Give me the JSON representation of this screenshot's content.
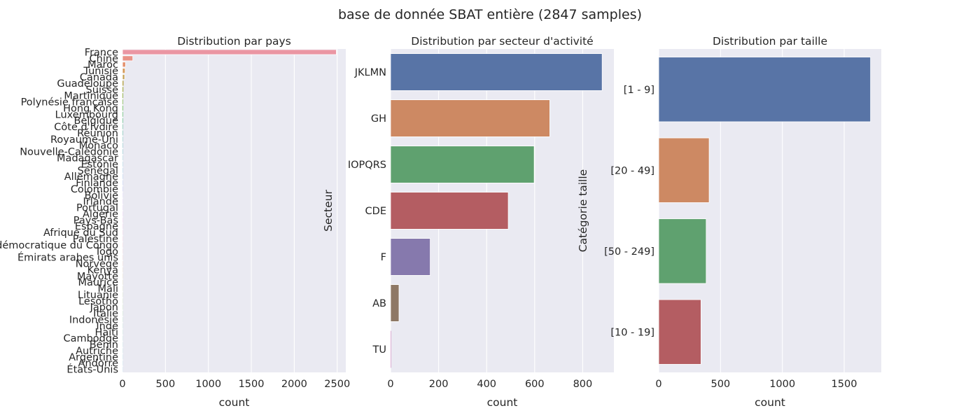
{
  "suptitle": "base de donnée SBAT entière (2847 samples)",
  "chart_data": [
    {
      "type": "bar",
      "orientation": "horizontal",
      "title": "Distribution par pays",
      "xlabel": "count",
      "ylabel": "",
      "xlim": [
        0,
        2600
      ],
      "xticks": [
        0,
        500,
        1000,
        1500,
        2000,
        2500
      ],
      "categories": [
        "France",
        "Chine",
        "Maroc",
        "Tunisie",
        "Canada",
        "Guadeloupe",
        "Suisse",
        "Martinique",
        "Polynésie française",
        "Hong Kong",
        "Luxembourg",
        "Belgique",
        "Côte d'Ivoire",
        "Réunion",
        "Royaume-Uni",
        "Monaco",
        "Nouvelle-Calédonie",
        "Madagascar",
        "Estonie",
        "Sénégal",
        "Allemagne",
        "Finlande",
        "Colombie",
        "Bolivie",
        "Irlande",
        "Portugal",
        "Algérie",
        "Pays-Bas",
        "Espagne",
        "Afrique du Sud",
        "Palestine",
        "République démocratique du Congo",
        "Togo",
        "Émirats arabes unis",
        "Norvège",
        "Kenya",
        "Mayotte",
        "Maurice",
        "Mali",
        "Lituanie",
        "Lesotho",
        "Japon",
        "Italie",
        "Indonésie",
        "Inde",
        "Haïti",
        "Cambodge",
        "Bénin",
        "Autriche",
        "Argentine",
        "Andorre",
        "États-Unis"
      ],
      "values": [
        2490,
        120,
        35,
        30,
        25,
        12,
        10,
        8,
        6,
        6,
        5,
        5,
        4,
        4,
        3,
        3,
        3,
        2,
        2,
        2,
        2,
        2,
        2,
        1,
        1,
        1,
        1,
        1,
        1,
        1,
        1,
        1,
        1,
        1,
        1,
        1,
        1,
        1,
        1,
        1,
        1,
        1,
        1,
        1,
        1,
        1,
        1,
        1,
        1,
        1,
        1,
        1
      ],
      "colors": [
        "#ea96a3",
        "#e99287",
        "#e4906d",
        "#d59a5a",
        "#c5a153",
        "#b8a74e",
        "#a6ad4e",
        "#93b14c",
        "#7cb54a",
        "#5eb849",
        "#4ab659",
        "#4ab577",
        "#4cb48b",
        "#4db39a",
        "#4eb2a5",
        "#4fb1af",
        "#50b1b8",
        "#52b0c2",
        "#55aecd",
        "#5aabd9",
        "#6aa5e2",
        "#7f9ee9",
        "#9295ee",
        "#a58cf0",
        "#b682ef",
        "#c677ec",
        "#d46de3",
        "#df66d5",
        "#e667c7",
        "#ea6ab7",
        "#ed6fa8",
        "#ee789a",
        "#ea96a3",
        "#e99287",
        "#e4906d",
        "#d59a5a",
        "#c5a153",
        "#b8a74e",
        "#a6ad4e",
        "#93b14c",
        "#7cb54a",
        "#5eb849",
        "#4ab659",
        "#4ab577",
        "#4cb48b",
        "#4db39a",
        "#4eb2a5",
        "#4fb1af",
        "#50b1b8",
        "#52b0c2",
        "#55aecd",
        "#5aabd9"
      ]
    },
    {
      "type": "bar",
      "orientation": "horizontal",
      "title": "Distribution par secteur d'activité",
      "xlabel": "count",
      "ylabel": "Secteur",
      "xlim": [
        0,
        930
      ],
      "xticks": [
        0,
        200,
        400,
        600,
        800
      ],
      "categories": [
        "JKLMN",
        "GH",
        "IOPQRS",
        "CDE",
        "F",
        "AB",
        "TU"
      ],
      "values": [
        881,
        663,
        598,
        490,
        165,
        35,
        2
      ],
      "colors": [
        "#5874a6",
        "#cd8963",
        "#5fa16f",
        "#b45d62",
        "#8679ad",
        "#8e7865",
        "#d38fc4"
      ]
    },
    {
      "type": "bar",
      "orientation": "horizontal",
      "title": "Distribution par taille",
      "xlabel": "count",
      "ylabel": "Catégorie taille",
      "xlim": [
        0,
        1800
      ],
      "xticks": [
        0,
        500,
        1000,
        1500
      ],
      "categories": [
        "[1 - 9]",
        "[20 - 49]",
        "[50 - 249]",
        "[10 - 19]"
      ],
      "values": [
        1713,
        408,
        384,
        342
      ],
      "colors": [
        "#5874a6",
        "#cd8963",
        "#5fa16f",
        "#b45d62"
      ]
    }
  ]
}
